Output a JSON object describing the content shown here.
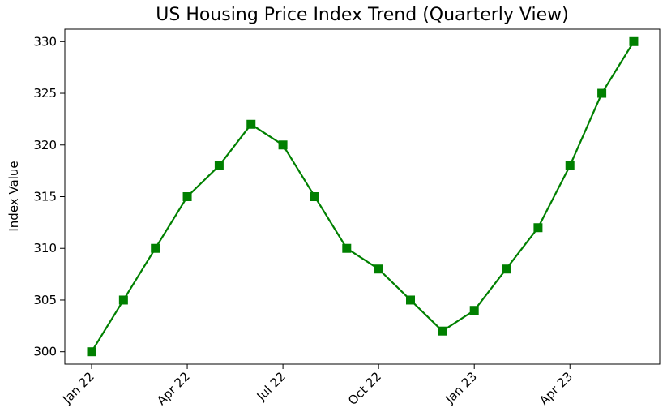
{
  "chart_data": {
    "type": "line",
    "title": "US Housing Price Index Trend (Quarterly View)",
    "xlabel": "",
    "ylabel": "Index Value",
    "x": [
      "2022-01-01",
      "2022-02-01",
      "2022-03-01",
      "2022-04-01",
      "2022-05-01",
      "2022-06-01",
      "2022-07-01",
      "2022-08-01",
      "2022-09-01",
      "2022-10-01",
      "2022-11-01",
      "2022-12-01",
      "2023-01-01",
      "2023-02-01",
      "2023-03-01",
      "2023-04-01",
      "2023-05-01",
      "2023-06-01"
    ],
    "series": [
      {
        "values": [
          300,
          305,
          310,
          315,
          318,
          322,
          320,
          315,
          310,
          308,
          305,
          302,
          304,
          308,
          312,
          318,
          325,
          330
        ],
        "color": "#008000",
        "marker": "square"
      }
    ],
    "xticks": [
      "Jan 22",
      "Apr 22",
      "Jul 22",
      "Oct 22",
      "Jan 23",
      "Apr 23"
    ],
    "yticks": [
      300,
      305,
      310,
      315,
      320,
      325,
      330
    ],
    "ylim": [
      298.8,
      331.2
    ],
    "grid": false
  }
}
